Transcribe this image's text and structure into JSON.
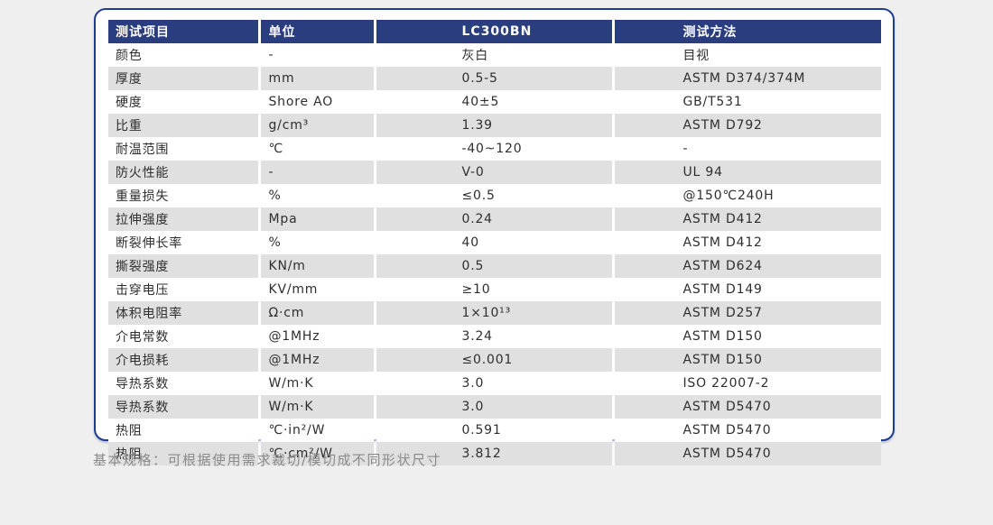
{
  "page": {
    "background_color": "#efefef",
    "caption": "基本规格：可根据使用需求裁切/模切成不同形状尺寸",
    "caption_color": "#8a8a8a"
  },
  "card": {
    "background_color": "#ffffff",
    "border_color": "#1f3d8f"
  },
  "table": {
    "header_bg_color": "#2a3d7e",
    "header_text_color": "#ffffff",
    "alt_row_bg_color": "#e0e0e0",
    "columns": [
      "测试项目",
      "单位",
      "LC300BN",
      "测试方法"
    ],
    "rows": [
      [
        "颜色",
        "-",
        "灰白",
        "目视"
      ],
      [
        "厚度",
        "mm",
        "0.5-5",
        "ASTM D374/374M"
      ],
      [
        "硬度",
        "Shore AO",
        "40±5",
        "GB/T531"
      ],
      [
        "比重",
        "g/cm³",
        "1.39",
        "ASTM D792"
      ],
      [
        "耐温范围",
        "℃",
        "-40~120",
        "-"
      ],
      [
        "防火性能",
        "-",
        "V-0",
        "UL 94"
      ],
      [
        "重量损失",
        "%",
        "≤0.5",
        "@150℃240H"
      ],
      [
        "拉伸强度",
        "Mpa",
        "0.24",
        "ASTM D412"
      ],
      [
        "断裂伸长率",
        "%",
        "40",
        "ASTM D412"
      ],
      [
        "撕裂强度",
        "KN/m",
        "0.5",
        "ASTM D624"
      ],
      [
        "击穿电压",
        "KV/mm",
        "≥10",
        "ASTM D149"
      ],
      [
        "体积电阻率",
        "Ω·cm",
        "1×10¹³",
        "ASTM D257"
      ],
      [
        "介电常数",
        "@1MHz",
        "3.24",
        "ASTM D150"
      ],
      [
        "介电损耗",
        "@1MHz",
        "≤0.001",
        "ASTM D150"
      ],
      [
        "导热系数",
        "W/m·K",
        "3.0",
        "ISO 22007-2"
      ],
      [
        "导热系数",
        "W/m·K",
        "3.0",
        "ASTM D5470"
      ],
      [
        "热阻",
        "℃·in²/W",
        "0.591",
        "ASTM D5470"
      ],
      [
        "热阻",
        "℃·cm²/W",
        "3.812",
        "ASTM D5470"
      ]
    ]
  }
}
